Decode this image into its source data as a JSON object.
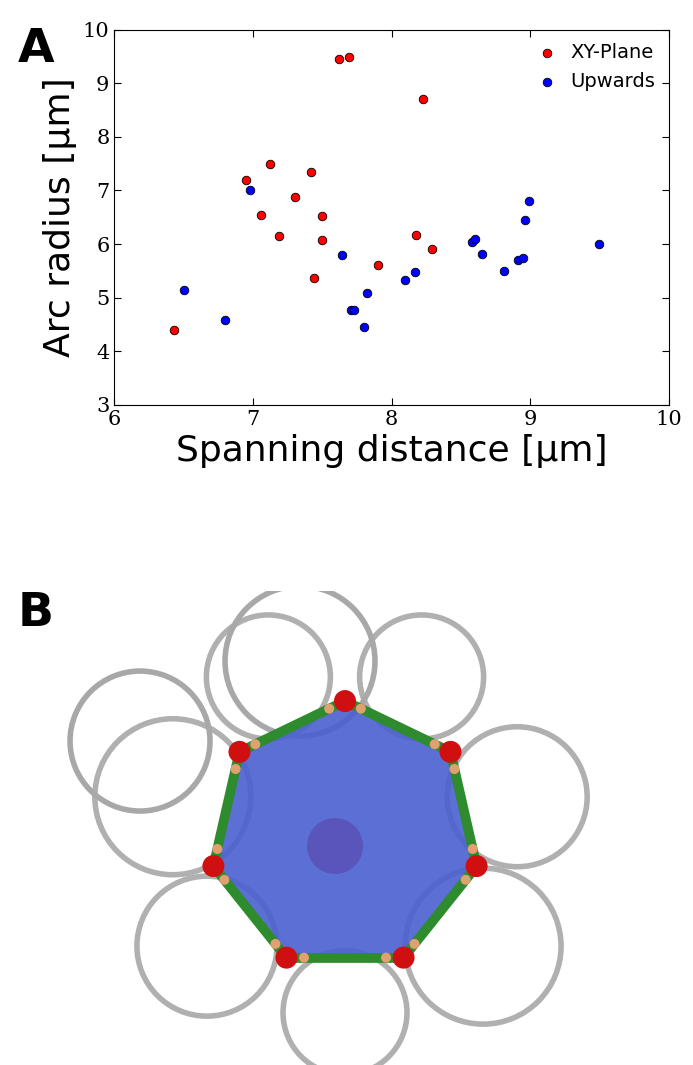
{
  "chart_data": {
    "type": "scatter",
    "panel_label": "A",
    "x_label": "Spanning distance [µm]",
    "y_label": "Arc radius [µm]",
    "xlim": [
      6,
      10
    ],
    "ylim": [
      3,
      10
    ],
    "xticks": [
      6,
      7,
      8,
      9,
      10
    ],
    "yticks": [
      3,
      4,
      5,
      6,
      7,
      8,
      9,
      10
    ],
    "legend": "upper right",
    "marker": "o",
    "series": [
      {
        "name": "XY-Plane",
        "color": "#ff0000",
        "x": [
          6.43,
          6.95,
          7.06,
          7.12,
          7.19,
          7.3,
          7.42,
          7.44,
          7.5,
          7.5,
          7.62,
          7.69,
          7.9,
          8.18,
          8.23,
          8.29
        ],
        "values": [
          4.4,
          7.2,
          6.55,
          7.5,
          6.15,
          6.88,
          7.35,
          5.37,
          6.53,
          6.08,
          9.45,
          9.5,
          5.6,
          6.17,
          8.7,
          5.9
        ]
      },
      {
        "name": "Upwards",
        "color": "#0000ff",
        "x": [
          6.5,
          6.8,
          6.98,
          7.64,
          7.71,
          7.73,
          7.8,
          7.82,
          8.1,
          8.17,
          8.58,
          8.6,
          8.65,
          8.81,
          8.91,
          8.95,
          8.96,
          8.99,
          9.5
        ],
        "values": [
          5.15,
          4.58,
          7.0,
          5.8,
          4.77,
          4.77,
          4.45,
          5.08,
          5.33,
          5.47,
          6.03,
          6.1,
          5.82,
          5.5,
          5.7,
          5.73,
          6.45,
          6.8,
          6.0
        ]
      }
    ]
  },
  "illustration": {
    "panel_label": "B"
  }
}
